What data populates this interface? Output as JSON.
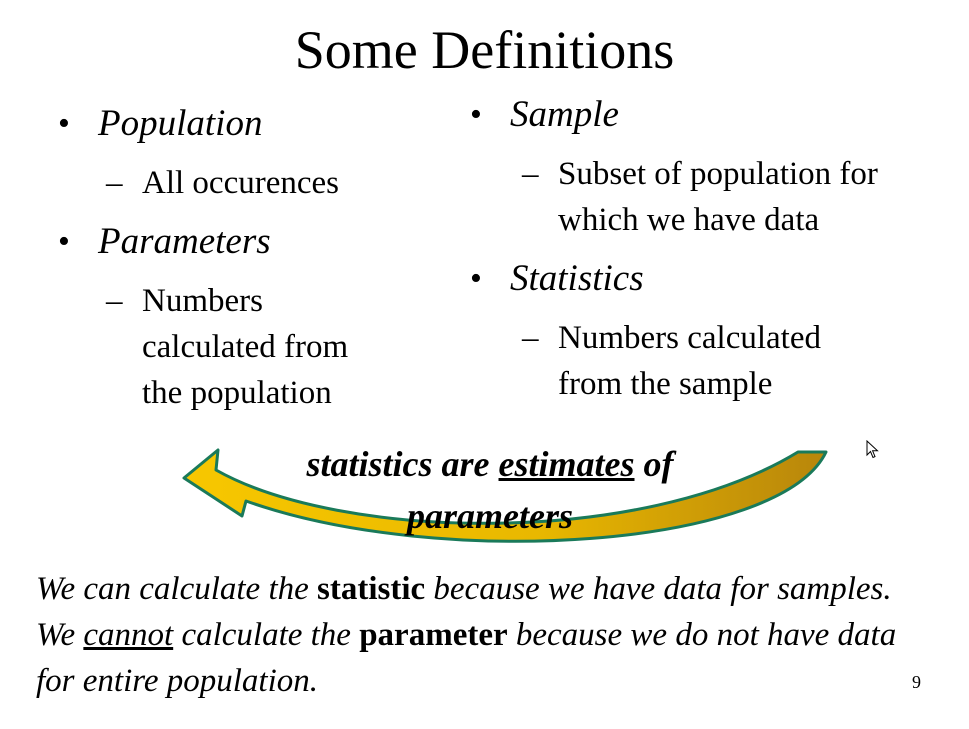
{
  "slide": {
    "title": "Some Definitions",
    "left": [
      {
        "term": "Population",
        "detail": [
          "All occurences"
        ]
      },
      {
        "term": "Parameters",
        "detail": [
          "Numbers",
          "calculated from",
          "the population"
        ]
      }
    ],
    "right": [
      {
        "term": "Sample",
        "detail": [
          "Subset of population for",
          "which we have data"
        ]
      },
      {
        "term": "Statistics",
        "detail": [
          "Numbers calculated",
          "from the sample"
        ]
      }
    ],
    "callout": {
      "part1": "statistics are ",
      "emph": "estimates",
      "part2": " of",
      "line2": "parameters"
    },
    "note": {
      "s1": "We can calculate the ",
      "b1": "statistic",
      "s2": " because we have data for samples. We ",
      "u1": "cannot",
      "s3": " calculate the ",
      "b2": "parameter",
      "s4": " because we do not have data for entire population."
    },
    "page_number": "9",
    "bullet_glyph": "•",
    "dash_glyph": "–",
    "colors": {
      "arrow_fill_light": "#f7c700",
      "arrow_fill_dark": "#b8860b",
      "arrow_outline": "#1a7a5a"
    },
    "icons": {
      "cursor": "mouse-pointer-icon"
    }
  }
}
